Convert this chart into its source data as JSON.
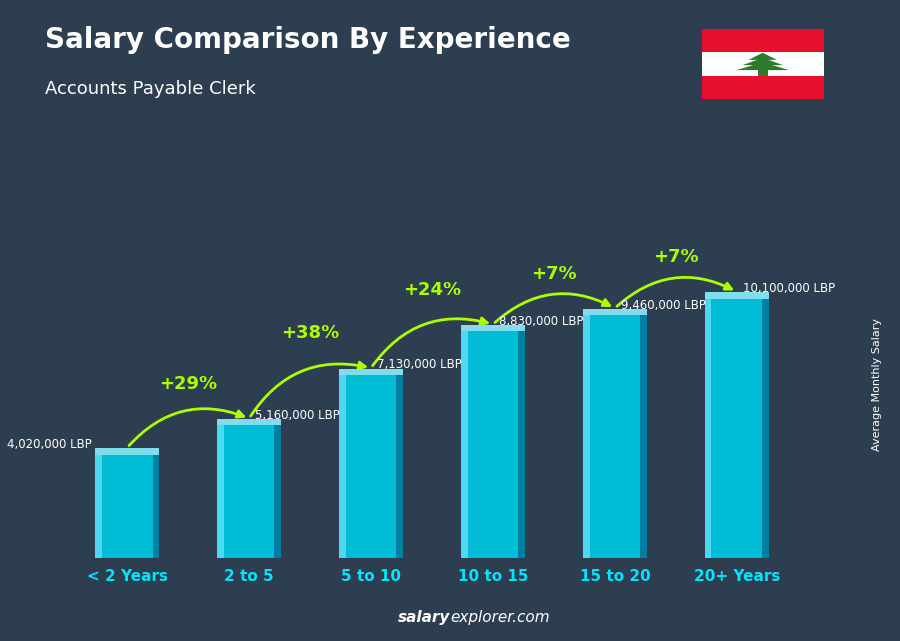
{
  "title": "Salary Comparison By Experience",
  "subtitle": "Accounts Payable Clerk",
  "categories": [
    "< 2 Years",
    "2 to 5",
    "5 to 10",
    "10 to 15",
    "15 to 20",
    "20+ Years"
  ],
  "values": [
    4020000,
    5160000,
    7130000,
    8830000,
    9460000,
    10100000
  ],
  "labels": [
    "4,020,000 LBP",
    "5,160,000 LBP",
    "7,130,000 LBP",
    "8,830,000 LBP",
    "9,460,000 LBP",
    "10,100,000 LBP"
  ],
  "pct_changes": [
    null,
    "+29%",
    "+38%",
    "+24%",
    "+7%",
    "+7%"
  ],
  "bar_color_main": "#00bcd4",
  "bar_color_light": "#4dd9ec",
  "bar_color_dark": "#0097a7",
  "bar_color_top": "#80deea",
  "pct_color": "#aaff00",
  "title_color": "#ffffff",
  "subtitle_color": "#ffffff",
  "label_color": "#ffffff",
  "footer_salary_color": "#ffffff",
  "footer_explorer_color": "#ffffff",
  "bg_color": "#2c3e50",
  "side_label": "Average Monthly Salary",
  "footer_bold": "salary",
  "footer_normal": "explorer.com",
  "ylim": [
    0,
    13500000
  ],
  "bar_width": 0.52
}
